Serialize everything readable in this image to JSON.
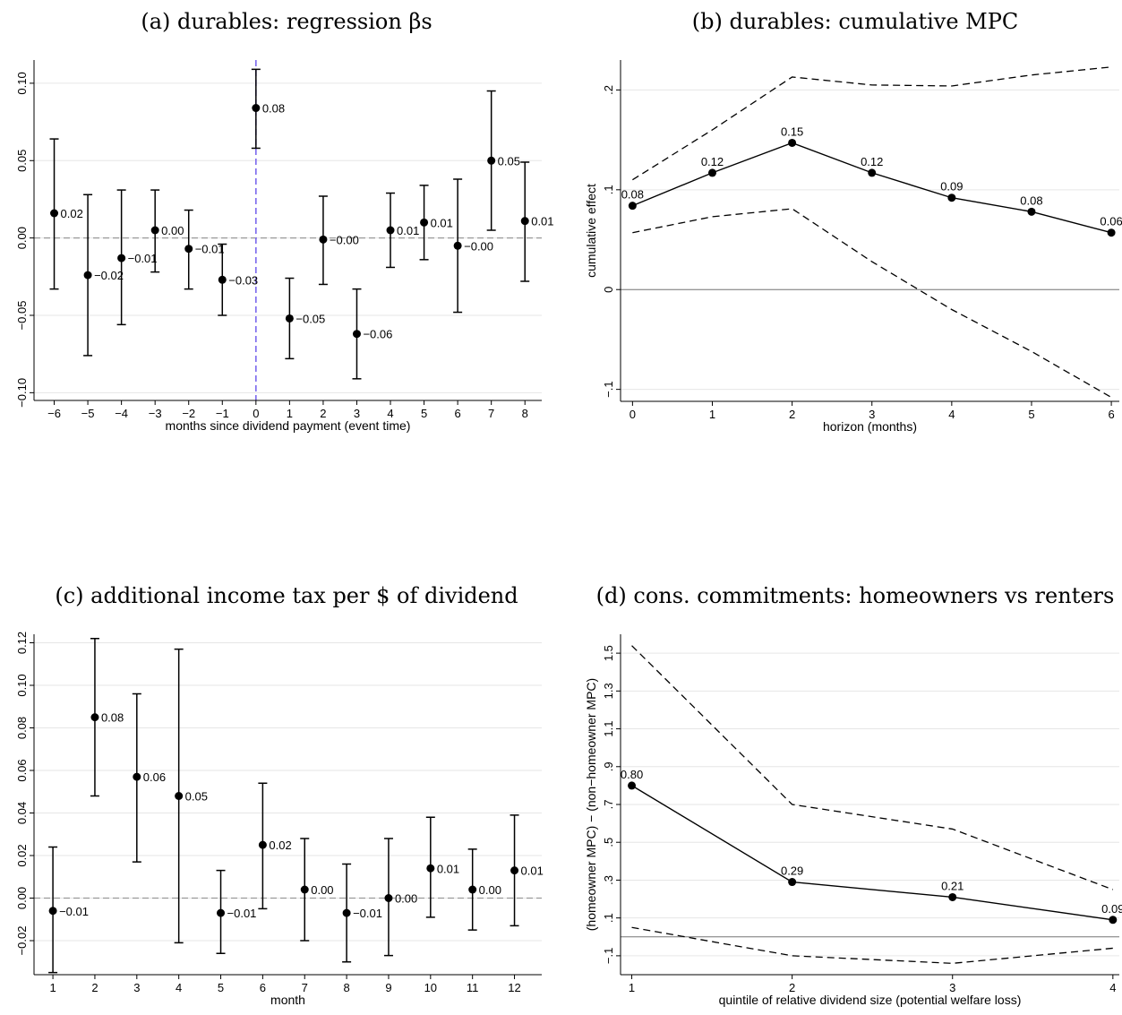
{
  "chart_data": [
    {
      "id": "a",
      "type": "errorbar",
      "title": "(a) durables: regression βs",
      "xlabel": "months since dividend payment (event time)",
      "ylabel": "",
      "ylim": [
        -0.105,
        0.115
      ],
      "xlim": [
        -6.6,
        8.5
      ],
      "xticks": [
        -6,
        -5,
        -4,
        -3,
        -2,
        -1,
        0,
        1,
        2,
        3,
        4,
        5,
        6,
        7,
        8
      ],
      "xtick_labels": [
        "−6",
        "−5",
        "−4",
        "−3",
        "−2",
        "−1",
        "0",
        "1",
        "2",
        "3",
        "4",
        "5",
        "6",
        "7",
        "8"
      ],
      "yticks": [
        -0.1,
        -0.05,
        0.0,
        0.05,
        0.1
      ],
      "ytick_labels": [
        "−0.10",
        "−0.05",
        "0.00",
        "0.05",
        "0.10"
      ],
      "gridlines": true,
      "zero_line": "dashed",
      "event_line_x": 0,
      "event_line_color": "#7b68ee",
      "points": [
        {
          "x": -6,
          "y": 0.016,
          "lo": -0.033,
          "hi": 0.064,
          "label": "0.02"
        },
        {
          "x": -5,
          "y": -0.024,
          "lo": -0.076,
          "hi": 0.028,
          "label": "−0.02"
        },
        {
          "x": -4,
          "y": -0.013,
          "lo": -0.056,
          "hi": 0.031,
          "label": "−0.01"
        },
        {
          "x": -3,
          "y": 0.005,
          "lo": -0.022,
          "hi": 0.031,
          "label": "0.00"
        },
        {
          "x": -2,
          "y": -0.007,
          "lo": -0.033,
          "hi": 0.018,
          "label": "−0.01"
        },
        {
          "x": -1,
          "y": -0.027,
          "lo": -0.05,
          "hi": -0.004,
          "label": "−0.03"
        },
        {
          "x": 0,
          "y": 0.084,
          "lo": 0.058,
          "hi": 0.109,
          "label": "0.08"
        },
        {
          "x": 1,
          "y": -0.052,
          "lo": -0.078,
          "hi": -0.026,
          "label": "−0.05"
        },
        {
          "x": 2,
          "y": -0.001,
          "lo": -0.03,
          "hi": 0.027,
          "label": "−0.00"
        },
        {
          "x": 3,
          "y": -0.062,
          "lo": -0.091,
          "hi": -0.033,
          "label": "−0.06"
        },
        {
          "x": 4,
          "y": 0.005,
          "lo": -0.019,
          "hi": 0.029,
          "label": "0.01"
        },
        {
          "x": 5,
          "y": 0.01,
          "lo": -0.014,
          "hi": 0.034,
          "label": "0.01"
        },
        {
          "x": 6,
          "y": -0.005,
          "lo": -0.048,
          "hi": 0.038,
          "label": "−0.00"
        },
        {
          "x": 7,
          "y": 0.05,
          "lo": 0.005,
          "hi": 0.095,
          "label": "0.05"
        },
        {
          "x": 8,
          "y": 0.011,
          "lo": -0.028,
          "hi": 0.049,
          "label": "0.01"
        }
      ]
    },
    {
      "id": "b",
      "type": "line",
      "title": "(b) durables: cumulative MPC",
      "xlabel": "horizon  (months)",
      "ylabel": "cumulative effect",
      "xlim": [
        -0.15,
        6.1
      ],
      "ylim": [
        -0.112,
        0.23
      ],
      "xticks": [
        0,
        1,
        2,
        3,
        4,
        5,
        6
      ],
      "xtick_labels": [
        "0",
        "1",
        "2",
        "3",
        "4",
        "5",
        "6"
      ],
      "yticks": [
        -0.1,
        0,
        0.1,
        0.2
      ],
      "ytick_labels": [
        "−.1",
        "0",
        ".1",
        ".2"
      ],
      "gridlines": true,
      "zero_line": "solid",
      "x": [
        0,
        1,
        2,
        3,
        4,
        5,
        6
      ],
      "estimate": [
        0.084,
        0.117,
        0.147,
        0.117,
        0.092,
        0.078,
        0.057
      ],
      "point_labels": [
        "0.08",
        "0.12",
        "0.15",
        "0.12",
        "0.09",
        "0.08",
        "0.06"
      ],
      "ci_upper": [
        0.11,
        0.16,
        0.213,
        0.205,
        0.204,
        0.215,
        0.223
      ],
      "ci_lower": [
        0.057,
        0.073,
        0.081,
        0.028,
        -0.02,
        -0.062,
        -0.108
      ]
    },
    {
      "id": "c",
      "type": "errorbar",
      "title": "(c) additional income tax per $ of dividend",
      "xlabel": "month",
      "ylabel": "",
      "xlim": [
        0.55,
        12.65
      ],
      "ylim": [
        -0.036,
        0.124
      ],
      "xticks": [
        1,
        2,
        3,
        4,
        5,
        6,
        7,
        8,
        9,
        10,
        11,
        12
      ],
      "xtick_labels": [
        "1",
        "2",
        "3",
        "4",
        "5",
        "6",
        "7",
        "8",
        "9",
        "10",
        "11",
        "12"
      ],
      "yticks": [
        -0.02,
        0.0,
        0.02,
        0.04,
        0.06,
        0.08,
        0.1,
        0.12
      ],
      "ytick_labels": [
        "−0.02",
        "0.00",
        "0.02",
        "0.04",
        "0.06",
        "0.08",
        "0.10",
        "0.12"
      ],
      "gridlines": true,
      "zero_line": "dashed",
      "points": [
        {
          "x": 1,
          "y": -0.006,
          "lo": -0.035,
          "hi": 0.024,
          "label": "−0.01"
        },
        {
          "x": 2,
          "y": 0.085,
          "lo": 0.048,
          "hi": 0.122,
          "label": "0.08"
        },
        {
          "x": 3,
          "y": 0.057,
          "lo": 0.017,
          "hi": 0.096,
          "label": "0.06"
        },
        {
          "x": 4,
          "y": 0.048,
          "lo": -0.021,
          "hi": 0.117,
          "label": "0.05"
        },
        {
          "x": 5,
          "y": -0.007,
          "lo": -0.026,
          "hi": 0.013,
          "label": "−0.01"
        },
        {
          "x": 6,
          "y": 0.025,
          "lo": -0.005,
          "hi": 0.054,
          "label": "0.02"
        },
        {
          "x": 7,
          "y": 0.004,
          "lo": -0.02,
          "hi": 0.028,
          "label": "0.00"
        },
        {
          "x": 8,
          "y": -0.007,
          "lo": -0.03,
          "hi": 0.016,
          "label": "−0.01"
        },
        {
          "x": 9,
          "y": 0.0,
          "lo": -0.027,
          "hi": 0.028,
          "label": "0.00"
        },
        {
          "x": 10,
          "y": 0.014,
          "lo": -0.009,
          "hi": 0.038,
          "label": "0.01"
        },
        {
          "x": 11,
          "y": 0.004,
          "lo": -0.015,
          "hi": 0.023,
          "label": "0.00"
        },
        {
          "x": 12,
          "y": 0.013,
          "lo": -0.013,
          "hi": 0.039,
          "label": "0.01"
        }
      ]
    },
    {
      "id": "d",
      "type": "line",
      "title": "(d) cons. commitments: homeowners vs renters",
      "xlabel": "quintile of relative dividend size (potential welfare loss)",
      "ylabel": "(homeowner MPC) − (non−homeowner MPC)",
      "xlim": [
        0.93,
        4.04
      ],
      "ylim": [
        -0.2,
        1.6
      ],
      "xticks": [
        1,
        2,
        3,
        4
      ],
      "xtick_labels": [
        "1",
        "2",
        "3",
        "4"
      ],
      "yticks": [
        -0.1,
        0.1,
        0.3,
        0.5,
        0.7,
        0.9,
        1.1,
        1.3,
        1.5
      ],
      "ytick_labels": [
        "−.1",
        ".1",
        ".3",
        ".5",
        ".7",
        ".9",
        "1.1",
        "1.3",
        "1.5"
      ],
      "gridlines": true,
      "zero_line": "solid",
      "x": [
        1,
        2,
        3,
        4
      ],
      "estimate": [
        0.8,
        0.29,
        0.21,
        0.09
      ],
      "point_labels": [
        "0.80",
        "0.29",
        "0.21",
        "0.09"
      ],
      "ci_upper": [
        1.54,
        0.7,
        0.57,
        0.25
      ],
      "ci_lower": [
        0.05,
        -0.1,
        -0.14,
        -0.06
      ]
    }
  ]
}
